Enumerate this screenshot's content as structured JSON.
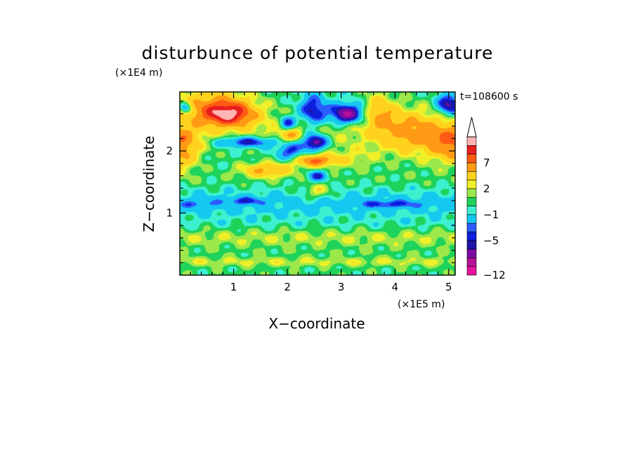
{
  "chart_data": {
    "type": "heatmap",
    "title": "disturbunce of potential temperature",
    "xlabel": "X−coordinate",
    "ylabel": "Z−coordinate",
    "x_scale_label": "(×1E5 m)",
    "y_scale_label": "(×1E4 m)",
    "time_label": "t=108600 s",
    "xlim": [
      0,
      5.12
    ],
    "ylim": [
      0,
      2.95
    ],
    "x_ticks": [
      1,
      2,
      3,
      4,
      5
    ],
    "y_ticks": [
      1,
      2
    ],
    "x_tick_labels": [
      "1",
      "2",
      "3",
      "4",
      "5"
    ],
    "y_tick_labels": [
      "1",
      "2"
    ],
    "colorbar": {
      "levels": [
        -12,
        -10,
        -8,
        -6,
        -5,
        -4,
        -3,
        -1,
        0,
        1,
        2,
        3,
        5,
        7,
        9,
        11
      ],
      "labeled_levels": [
        {
          "value": 7,
          "text": "7"
        },
        {
          "value": 2,
          "text": "2"
        },
        {
          "value": -1,
          "text": "−1"
        },
        {
          "value": -5,
          "text": "−5"
        },
        {
          "value": -12,
          "text": "−12"
        }
      ],
      "colors": [
        "#e6139a",
        "#b7119a",
        "#7d0aa6",
        "#1e14a8",
        "#0a1edc",
        "#2b5cff",
        "#14c8f0",
        "#3cf0d0",
        "#1ed25a",
        "#9ce84a",
        "#f0f028",
        "#ffd21e",
        "#ff9a14",
        "#ff5a14",
        "#e61e1e",
        "#ffb4b4"
      ],
      "extend": "max"
    },
    "field_features": [
      {
        "x": 0.9,
        "z": 2.6,
        "value": 8,
        "rx": 0.45,
        "rz": 0.18
      },
      {
        "x": 0.6,
        "z": 2.75,
        "value": 5,
        "rx": 0.8,
        "rz": 0.3
      },
      {
        "x": 0.0,
        "z": 2.05,
        "value": 6,
        "rx": 0.35,
        "rz": 0.35
      },
      {
        "x": 5.1,
        "z": 2.1,
        "value": 6,
        "rx": 0.45,
        "rz": 0.3
      },
      {
        "x": 4.3,
        "z": 2.3,
        "value": 4,
        "rx": 0.6,
        "rz": 0.4
      },
      {
        "x": 3.7,
        "z": 2.65,
        "value": 4,
        "rx": 0.3,
        "rz": 0.3
      },
      {
        "x": 5.0,
        "z": 2.75,
        "value": -7,
        "rx": 0.22,
        "rz": 0.17
      },
      {
        "x": 3.1,
        "z": 2.6,
        "value": -9,
        "rx": 0.32,
        "rz": 0.16
      },
      {
        "x": 2.47,
        "z": 2.65,
        "value": -6,
        "rx": 0.25,
        "rz": 0.25
      },
      {
        "x": 2.5,
        "z": 2.15,
        "value": -8,
        "rx": 0.24,
        "rz": 0.13
      },
      {
        "x": 2.0,
        "z": 2.45,
        "value": -6,
        "rx": 0.15,
        "rz": 0.12
      },
      {
        "x": 1.25,
        "z": 2.15,
        "value": -6,
        "rx": 0.55,
        "rz": 0.09
      },
      {
        "x": 2.05,
        "z": 2.0,
        "value": -5,
        "rx": 0.25,
        "rz": 0.15
      },
      {
        "x": 0.1,
        "z": 2.7,
        "value": -6,
        "rx": 0.12,
        "rz": 0.1
      },
      {
        "x": 2.5,
        "z": 1.85,
        "value": 7,
        "rx": 0.4,
        "rz": 0.1
      },
      {
        "x": 1.6,
        "z": 1.7,
        "value": 5,
        "rx": 0.5,
        "rz": 0.12
      },
      {
        "x": 2.05,
        "z": 2.25,
        "value": 4,
        "rx": 0.22,
        "rz": 0.12
      },
      {
        "x": 2.55,
        "z": 1.6,
        "value": -5,
        "rx": 0.18,
        "rz": 0.09
      },
      {
        "x": 2.55,
        "z": 1.35,
        "value": 3,
        "rx": 0.25,
        "rz": 0.12
      },
      {
        "x": 3.2,
        "z": 1.9,
        "value": 2,
        "rx": 0.5,
        "rz": 0.2
      },
      {
        "x": 1.2,
        "z": 1.2,
        "value": -3,
        "rx": 0.4,
        "rz": 0.06
      },
      {
        "x": 3.9,
        "z": 1.15,
        "value": -3,
        "rx": 0.6,
        "rz": 0.06
      },
      {
        "x": 0.3,
        "z": 1.15,
        "value": -2,
        "rx": 0.35,
        "rz": 0.06
      }
    ],
    "field_bands": [
      {
        "z": 2.35,
        "value": 2.0,
        "w": 0.3
      },
      {
        "z": 1.55,
        "value": 0.5,
        "w": 0.15
      },
      {
        "z": 1.15,
        "value": -1.6,
        "w": 0.22
      },
      {
        "z": 0.85,
        "value": -0.2,
        "w": 0.07
      },
      {
        "z": 0.6,
        "value": 1.8,
        "w": 0.14
      },
      {
        "z": 0.38,
        "value": 0.6,
        "w": 0.08
      },
      {
        "z": 0.22,
        "value": 2.0,
        "w": 0.08
      },
      {
        "z": 0.05,
        "value": 0.5,
        "w": 0.08
      }
    ]
  }
}
